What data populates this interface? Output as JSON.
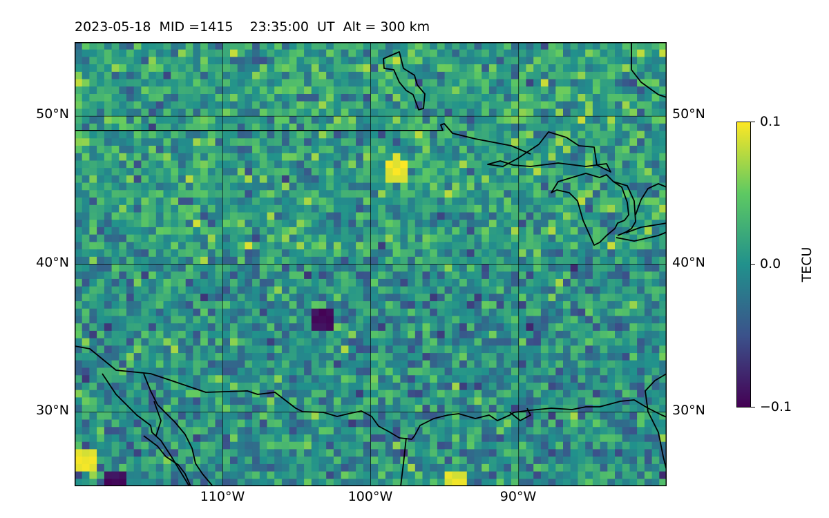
{
  "title": "2023-05-18  MID =1415    23:35:00  UT  Alt = 300 km",
  "map": {
    "extent": {
      "lon": [
        -120,
        -80
      ],
      "lat": [
        25,
        55
      ]
    },
    "gridlines": {
      "lon": [
        -110,
        -100,
        -90
      ],
      "lat": [
        30,
        40,
        50
      ]
    },
    "lat_labels": [
      "30°N",
      "40°N",
      "50°N"
    ],
    "lon_labels": [
      "110°W",
      "100°W",
      "90°W"
    ],
    "variable": "TECU",
    "colormap": "viridis",
    "vmin": -0.1,
    "vmax": 0.1,
    "features": [
      "coastlines",
      "country borders",
      "great lakes"
    ]
  },
  "colorbar": {
    "label": "TECU",
    "ticks": [
      "0.1",
      "0.0",
      "−0.1"
    ],
    "colors": [
      "#440154",
      "#3b528b",
      "#21918c",
      "#5ec962",
      "#fde725"
    ]
  },
  "chart_data": {
    "type": "heatmap",
    "title": "2023-05-18  MID =1415    23:35:00  UT  Alt = 300 km",
    "xlabel": "",
    "ylabel": "",
    "colorbar_label": "TECU",
    "x_ticks": [
      "110°W",
      "100°W",
      "90°W"
    ],
    "y_ticks": [
      "30°N",
      "40°N",
      "50°N"
    ],
    "xlim": [
      -120,
      -80
    ],
    "ylim": [
      25,
      55
    ],
    "zlim": [
      -0.1,
      0.1
    ],
    "grid": true,
    "notable_regions": [
      {
        "lon": -103.5,
        "lat": 36.5,
        "value": -0.1
      },
      {
        "lon": -117.5,
        "lat": 25.5,
        "value": -0.1
      },
      {
        "lon": -98.5,
        "lat": 46.6,
        "value": 0.1
      },
      {
        "lon": -94.5,
        "lat": 25.5,
        "value": 0.1
      },
      {
        "lon": -119.6,
        "lat": 27.0,
        "value": 0.1
      }
    ]
  }
}
